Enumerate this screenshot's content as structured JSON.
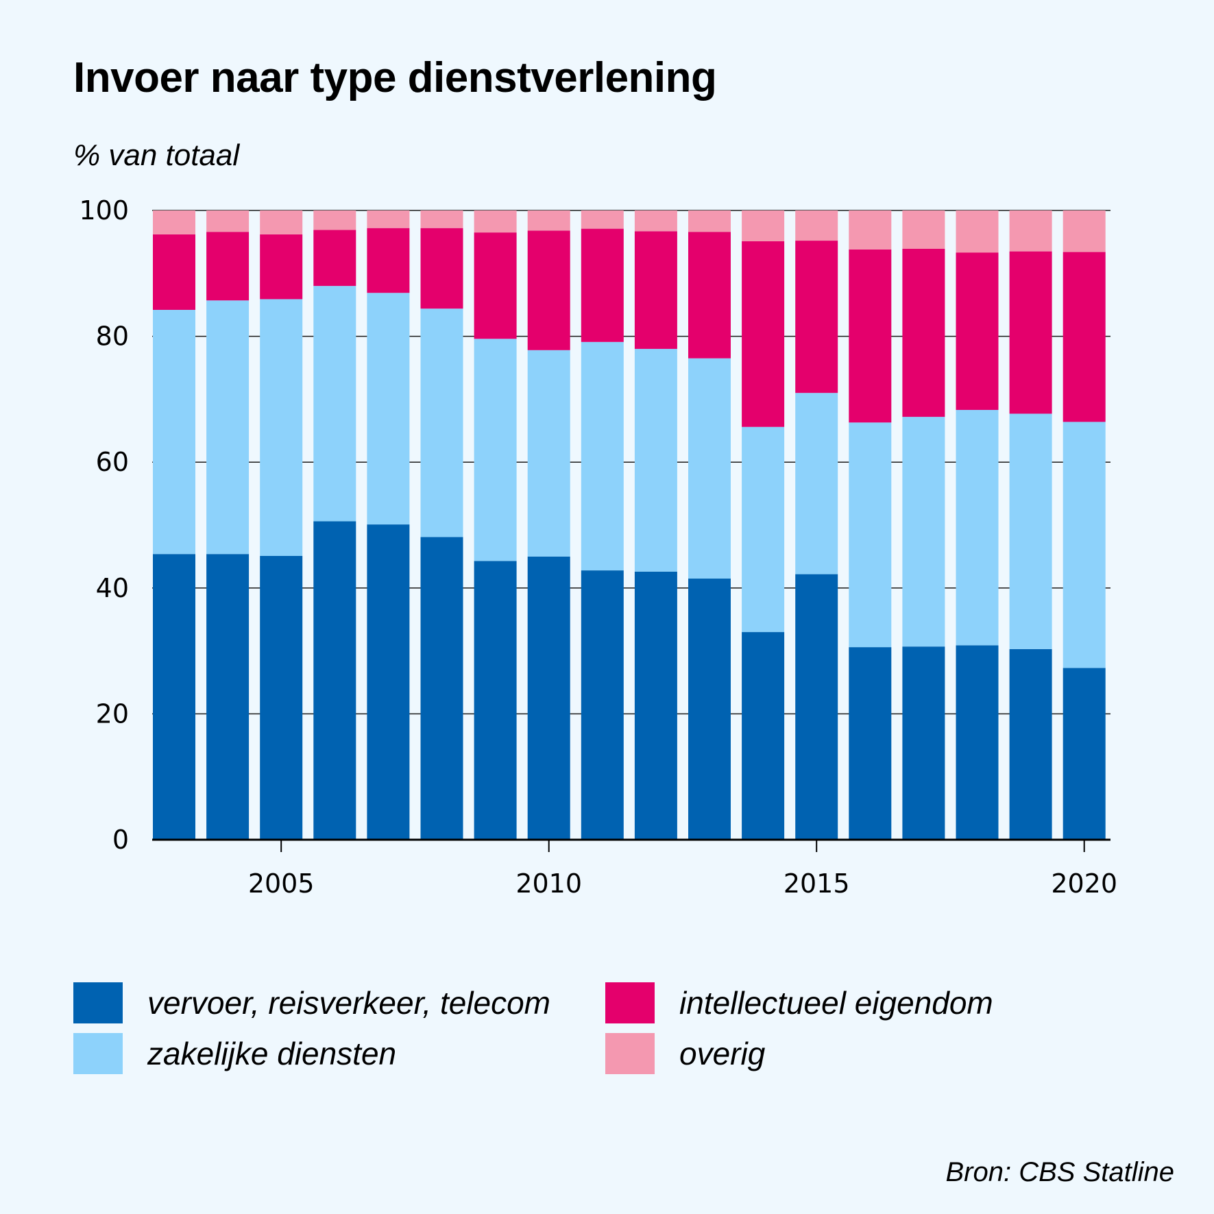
{
  "title": "Invoer naar type dienstverlening",
  "subtitle": "% van totaal",
  "source": "Bron: CBS Statline",
  "colors": {
    "background": "#eff8fe",
    "vervoer": "#0062b1",
    "zakelijk": "#8dd2fb",
    "intellectueel": "#e4006c",
    "overig": "#f498b0"
  },
  "legend": [
    {
      "label": "vervoer, reisverkeer, telecom",
      "color": "#0062b1"
    },
    {
      "label": "intellectueel eigendom",
      "color": "#e4006c"
    },
    {
      "label": "zakelijke diensten",
      "color": "#8dd2fb"
    },
    {
      "label": "overig",
      "color": "#f498b0"
    }
  ],
  "chart_data": {
    "type": "bar",
    "stacked": true,
    "title": "Invoer naar type dienstverlening",
    "ylabel": "% van totaal",
    "xlabel": "",
    "ylim": [
      0,
      100
    ],
    "yticks": [
      0,
      20,
      40,
      60,
      80,
      100
    ],
    "xticks": [
      2005,
      2010,
      2015,
      2020
    ],
    "categories": [
      2003,
      2004,
      2005,
      2006,
      2007,
      2008,
      2009,
      2010,
      2011,
      2012,
      2013,
      2014,
      2015,
      2016,
      2017,
      2018,
      2019,
      2020
    ],
    "series": [
      {
        "name": "vervoer, reisverkeer, telecom",
        "color": "#0062b1",
        "values": [
          45.4,
          45.4,
          45.1,
          50.6,
          50.1,
          48.1,
          44.3,
          45.0,
          42.8,
          42.6,
          41.5,
          33.0,
          42.2,
          30.6,
          30.7,
          30.9,
          30.3,
          27.3
        ]
      },
      {
        "name": "zakelijke diensten",
        "color": "#8dd2fb",
        "values": [
          38.8,
          40.3,
          40.8,
          37.4,
          36.8,
          36.3,
          35.3,
          32.8,
          36.3,
          35.4,
          35.0,
          32.6,
          28.8,
          35.7,
          36.5,
          37.4,
          37.4,
          39.1
        ]
      },
      {
        "name": "intellectueel eigendom",
        "color": "#e4006c",
        "values": [
          12.0,
          10.9,
          10.3,
          8.9,
          10.3,
          12.8,
          16.9,
          19.0,
          18.0,
          18.7,
          20.1,
          29.5,
          24.2,
          27.5,
          26.7,
          25.0,
          25.8,
          27.0
        ]
      },
      {
        "name": "overig",
        "color": "#f498b0",
        "values": [
          3.8,
          3.4,
          3.8,
          3.1,
          2.8,
          2.8,
          3.5,
          3.2,
          2.9,
          3.3,
          3.4,
          4.9,
          4.8,
          6.2,
          6.1,
          6.7,
          6.5,
          6.6
        ]
      }
    ]
  }
}
